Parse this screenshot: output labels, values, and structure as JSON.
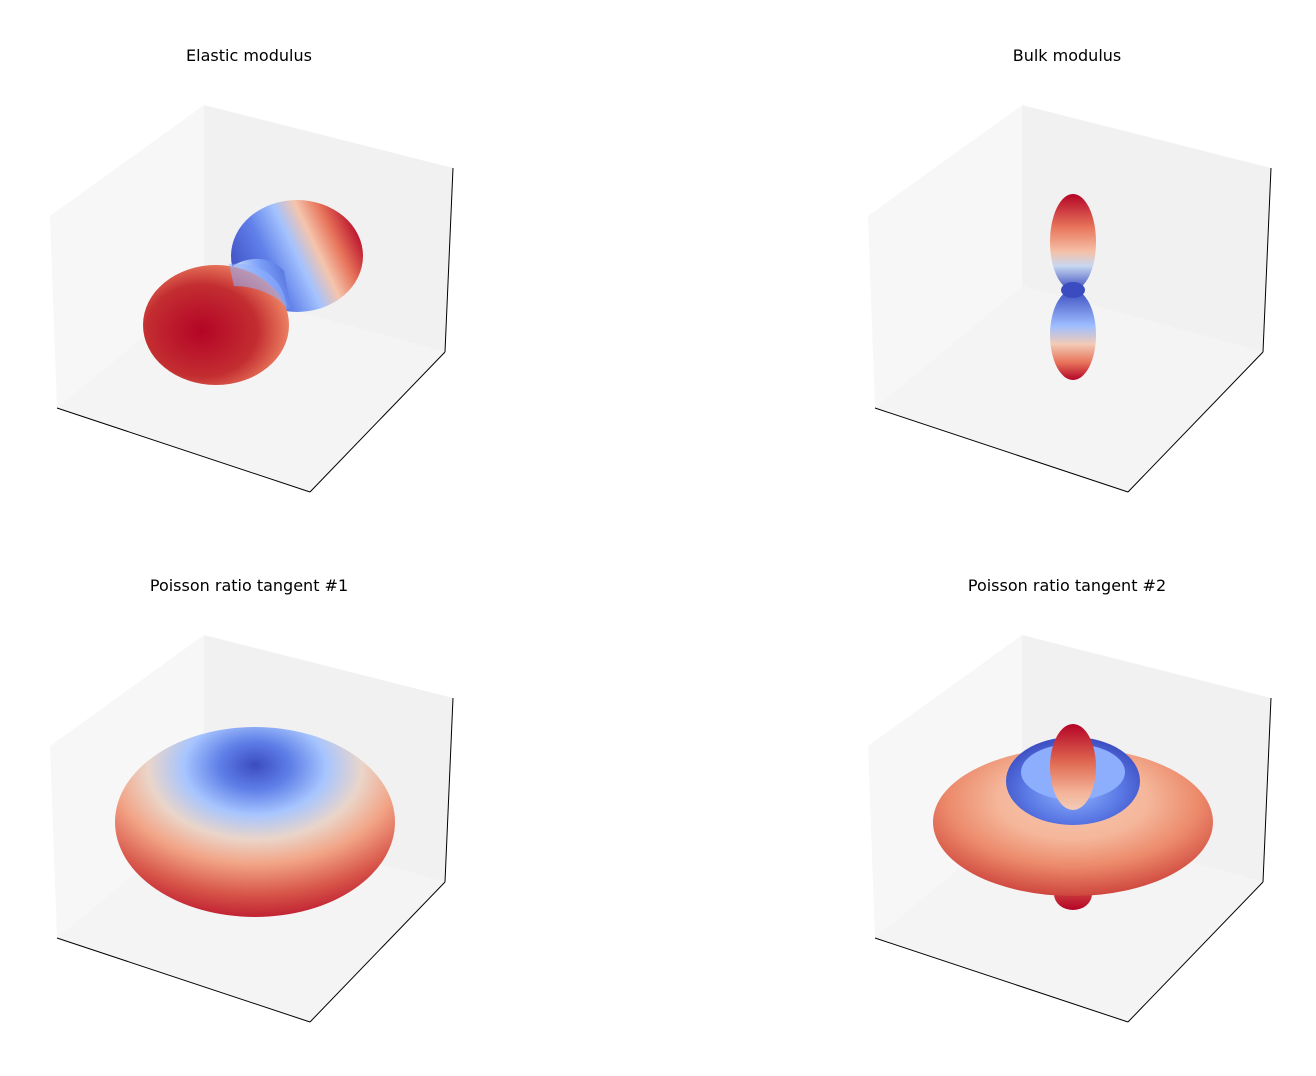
{
  "chart_data": [
    {
      "type": "surface3d",
      "title": "Elastic modulus",
      "shape": "dumbbell",
      "colormap": "coolwarm",
      "colors": {
        "low": "#3b4cc0",
        "mid": "#dddddd",
        "high": "#b40426"
      },
      "axis_ticks": false,
      "grid": false
    },
    {
      "type": "surface3d",
      "title": "Bulk modulus",
      "shape": "vertical-peanut",
      "colormap": "coolwarm",
      "colors": {
        "low": "#3b4cc0",
        "mid": "#dddddd",
        "high": "#b40426"
      },
      "axis_ticks": false,
      "grid": false
    },
    {
      "type": "surface3d",
      "title": "Poisson ratio tangent #1",
      "shape": "oblate-spheroid",
      "colormap": "coolwarm",
      "colors": {
        "low": "#3b4cc0",
        "mid": "#dddddd",
        "high": "#b40426"
      },
      "axis_ticks": false,
      "grid": false
    },
    {
      "type": "surface3d",
      "title": "Poisson ratio tangent #2",
      "shape": "disc-with-vertical-lobes",
      "colormap": "coolwarm",
      "colors": {
        "low": "#3b4cc0",
        "mid": "#dddddd",
        "high": "#b40426"
      },
      "axis_ticks": false,
      "grid": false
    }
  ]
}
